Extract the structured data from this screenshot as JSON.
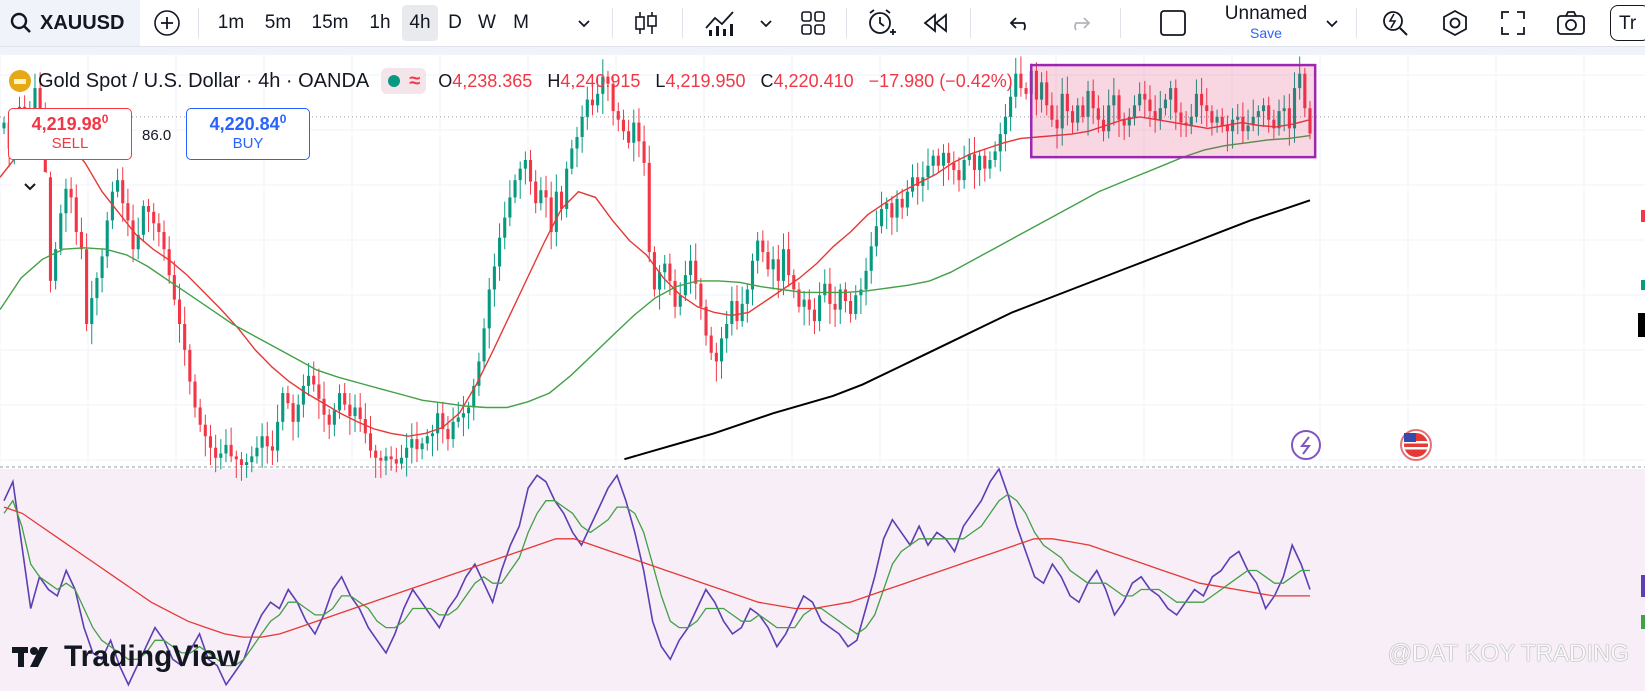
{
  "toolbar": {
    "symbol": "XAUUSD",
    "timeframes": [
      "1m",
      "5m",
      "15m",
      "1h",
      "4h",
      "D",
      "W",
      "M"
    ],
    "active_timeframe": "4h",
    "layout_name": "Unnamed",
    "save_label": "Save",
    "trade_cut": "Tr"
  },
  "legend": {
    "title": "Gold Spot / U.S. Dollar · 4h · OANDA",
    "o_label": "O",
    "o": "4,238.365",
    "h_label": "H",
    "h": "4,240.915",
    "l_label": "L",
    "l": "4,219.950",
    "c_label": "C",
    "c": "4,220.410",
    "change": "−17.980 (−0.42%)",
    "wave_glyph": "≈"
  },
  "trade": {
    "sell_price": "4,219.98",
    "sell_sup": "0",
    "sell_label": "SELL",
    "spread": "86.0",
    "buy_price": "4,220.84",
    "buy_sup": "0",
    "buy_label": "BUY"
  },
  "branding": {
    "logo_text": "TradingView",
    "watermark": "@DAT KOY TRADING"
  },
  "colors": {
    "up": "#089981",
    "down": "#f23645",
    "ema_short": "#e53935",
    "ema_mid": "#43a047",
    "ema_long": "#000000",
    "rsi": "#5b3fb3",
    "box": "#9c27b0"
  },
  "chart_data": [
    {
      "type": "candlestick",
      "title": "Gold Spot / U.S. Dollar · 4h · OANDA",
      "ylim": [
        3990,
        4275
      ],
      "close": [
        4228,
        4210,
        4232,
        4239,
        4218,
        4234,
        4252,
        4230,
        4190,
        4118,
        4140,
        4165,
        4182,
        4176,
        4152,
        4140,
        4088,
        4106,
        4120,
        4135,
        4160,
        4180,
        4188,
        4172,
        4160,
        4140,
        4150,
        4170,
        4166,
        4158,
        4152,
        4140,
        4122,
        4105,
        4088,
        4070,
        4048,
        4030,
        4018,
        4010,
        4002,
        3995,
        3998,
        4004,
        3996,
        3994,
        3990,
        3992,
        3996,
        4002,
        4010,
        4003,
        4000,
        4020,
        4040,
        4033,
        4020,
        4032,
        4045,
        4052,
        4046,
        4036,
        4025,
        4018,
        4028,
        4040,
        4032,
        4024,
        4030,
        4022,
        4012,
        4000,
        3995,
        3993,
        3996,
        3994,
        3991,
        3995,
        4002,
        4008,
        4001,
        4005,
        4010,
        4012,
        4026,
        4015,
        4008,
        4020,
        4023,
        4026,
        4030,
        4045,
        4062,
        4085,
        4112,
        4128,
        4148,
        4162,
        4176,
        4188,
        4196,
        4202,
        4187,
        4172,
        4181,
        4176,
        4152,
        4180,
        4168,
        4196,
        4210,
        4218,
        4232,
        4244,
        4240,
        4248,
        4260,
        4255,
        4236,
        4230,
        4222,
        4214,
        4228,
        4215,
        4200,
        4138,
        4112,
        4124,
        4130,
        4118,
        4100,
        4108,
        4122,
        4132,
        4116,
        4100,
        4080,
        4068,
        4062,
        4078,
        4088,
        4104,
        4090,
        4102,
        4112,
        4132,
        4146,
        4138,
        4126,
        4133,
        4118,
        4140,
        4122,
        4112,
        4100,
        4105,
        4098,
        4090,
        4108,
        4116,
        4102,
        4098,
        4112,
        4104,
        4095,
        4108,
        4112,
        4125,
        4142,
        4156,
        4168,
        4172,
        4162,
        4175,
        4169,
        4180,
        4190,
        4184,
        4190,
        4198,
        4205,
        4198,
        4207,
        4200,
        4195,
        4188,
        4202,
        4206,
        4195,
        4205,
        4196,
        4202,
        4208,
        4220,
        4232,
        4246,
        4262,
        4252,
        4248,
        4264,
        4244,
        4256,
        4240,
        4230,
        4224,
        4248,
        4236,
        4228,
        4240,
        4232,
        4250,
        4238,
        4230,
        4222,
        4240,
        4247,
        4230,
        4226,
        4232,
        4240,
        4248,
        4244,
        4236,
        4230,
        4238,
        4244,
        4252,
        4235,
        4228,
        4226,
        4232,
        4248,
        4240,
        4236,
        4228,
        4232,
        4226,
        4222,
        4230,
        4232,
        4222,
        4226,
        4232,
        4236,
        4240,
        4230,
        4224,
        4236,
        4238,
        4224,
        4252,
        4262,
        4238,
        4220.41
      ],
      "series": [
        {
          "name": "",
          "color": "#e53935",
          "x_first": 0,
          "values": [
            4190,
            4205,
            4212,
            4216,
            4214,
            4200,
            4180,
            4165,
            4150,
            4140,
            4132,
            4122,
            4110,
            4098,
            4085,
            4070,
            4058,
            4048,
            4040,
            4033,
            4026,
            4020,
            4015,
            4012,
            4010,
            4012,
            4016,
            4026,
            4046,
            4070,
            4095,
            4120,
            4145,
            4168,
            4180,
            4176,
            4160,
            4146,
            4136,
            4120,
            4108,
            4100,
            4096,
            4094,
            4096,
            4104,
            4112,
            4120,
            4130,
            4142,
            4152,
            4164,
            4172,
            4180,
            4186,
            4192,
            4200,
            4206,
            4210,
            4214,
            4217,
            4218,
            4219,
            4220,
            4222,
            4226,
            4230,
            4232,
            4230,
            4228,
            4226,
            4224,
            4226,
            4228,
            4226,
            4225,
            4227,
            4230
          ]
        },
        {
          "name": "",
          "color": "#43a047",
          "x_first": 0,
          "values": [
            4098,
            4120,
            4133,
            4140,
            4141,
            4140,
            4136,
            4128,
            4118,
            4108,
            4098,
            4088,
            4080,
            4072,
            4064,
            4056,
            4051,
            4047,
            4043,
            4039,
            4035,
            4033,
            4031,
            4030,
            4030,
            4034,
            4040,
            4052,
            4066,
            4080,
            4094,
            4106,
            4114,
            4118,
            4118,
            4117,
            4114,
            4112,
            4110,
            4110,
            4110,
            4111,
            4113,
            4115,
            4118,
            4124,
            4132,
            4140,
            4148,
            4156,
            4164,
            4172,
            4180,
            4186,
            4192,
            4198,
            4204,
            4209,
            4212,
            4214,
            4216,
            4217,
            4219
          ]
        },
        {
          "name": "",
          "color": "#000000",
          "x_first": 0,
          "values": [
            3994,
            4000,
            4006,
            4012,
            4019,
            4026,
            4032,
            4038,
            4046,
            4056,
            4066,
            4076,
            4086,
            4096,
            4104,
            4112,
            4120,
            4128,
            4136,
            4144,
            4152,
            4160,
            4167,
            4174
          ]
        }
      ],
      "annotations": [
        {
          "type": "rectangle",
          "color": "#9c27b0",
          "x_range": [
            199,
            254
          ],
          "y_range": [
            4204,
            4268
          ]
        },
        {
          "type": "icon",
          "name": "lightning-icon"
        },
        {
          "type": "icon",
          "name": "us-flag-icon"
        }
      ],
      "grid": true
    },
    {
      "type": "line",
      "title": "",
      "ylim": [
        20,
        90
      ],
      "series": [
        {
          "name": "",
          "color": "#5b3fb3",
          "values": [
            80,
            86,
            66,
            46,
            56,
            52,
            50,
            58,
            52,
            40,
            32,
            30,
            36,
            28,
            22,
            28,
            34,
            40,
            36,
            30,
            28,
            33,
            38,
            30,
            28,
            22,
            26,
            30,
            38,
            44,
            48,
            46,
            52,
            48,
            42,
            38,
            44,
            52,
            56,
            50,
            46,
            40,
            36,
            32,
            38,
            46,
            52,
            48,
            44,
            40,
            46,
            50,
            56,
            60,
            54,
            48,
            58,
            66,
            72,
            84,
            88,
            86,
            80,
            76,
            70,
            66,
            72,
            78,
            84,
            88,
            80,
            70,
            58,
            42,
            34,
            30,
            36,
            40,
            46,
            52,
            48,
            42,
            38,
            40,
            46,
            44,
            40,
            34,
            38,
            44,
            50,
            48,
            42,
            40,
            38,
            34,
            36,
            46,
            56,
            68,
            74,
            70,
            66,
            72,
            66,
            70,
            68,
            64,
            72,
            76,
            80,
            86,
            90,
            82,
            72,
            64,
            56,
            54,
            60,
            56,
            50,
            48,
            54,
            58,
            52,
            44,
            48,
            54,
            56,
            52,
            50,
            46,
            44,
            48,
            52,
            50,
            56,
            58,
            62,
            64,
            58,
            54,
            46,
            50,
            56,
            66,
            60,
            52
          ]
        },
        {
          "name": "",
          "color": "#43a047",
          "values": [
            76,
            80,
            72,
            60,
            56,
            54,
            52,
            54,
            52,
            46,
            40,
            36,
            34,
            32,
            30,
            30,
            32,
            36,
            36,
            34,
            32,
            32,
            34,
            32,
            30,
            28,
            28,
            30,
            34,
            38,
            42,
            44,
            48,
            48,
            46,
            44,
            44,
            46,
            50,
            50,
            48,
            46,
            42,
            40,
            40,
            42,
            46,
            46,
            46,
            44,
            44,
            46,
            50,
            54,
            56,
            54,
            54,
            58,
            62,
            70,
            76,
            80,
            80,
            78,
            76,
            72,
            70,
            72,
            74,
            78,
            78,
            76,
            70,
            60,
            50,
            42,
            40,
            40,
            42,
            46,
            46,
            46,
            44,
            42,
            42,
            44,
            42,
            40,
            40,
            40,
            44,
            46,
            46,
            44,
            42,
            40,
            38,
            40,
            44,
            52,
            60,
            64,
            66,
            68,
            68,
            68,
            68,
            68,
            68,
            70,
            72,
            76,
            80,
            82,
            80,
            76,
            70,
            66,
            64,
            62,
            58,
            56,
            54,
            54,
            54,
            52,
            50,
            50,
            52,
            52,
            52,
            50,
            48,
            48,
            48,
            48,
            50,
            52,
            54,
            56,
            58,
            58,
            56,
            54,
            54,
            56,
            58,
            58
          ]
        },
        {
          "name": "",
          "color": "#e53935",
          "values": [
            78,
            76,
            72,
            68,
            64,
            60,
            56,
            52,
            48,
            45,
            42,
            40,
            38,
            37,
            37,
            38,
            40,
            42,
            44,
            46,
            48,
            50,
            52,
            54,
            56,
            58,
            60,
            62,
            64,
            66,
            68,
            68,
            66,
            64,
            62,
            60,
            58,
            56,
            54,
            52,
            50,
            48,
            47,
            46,
            46,
            47,
            48,
            50,
            52,
            54,
            56,
            58,
            60,
            62,
            64,
            66,
            68,
            68,
            67,
            66,
            64,
            62,
            60,
            58,
            56,
            54,
            53,
            52,
            51,
            50,
            50,
            50
          ]
        }
      ],
      "grid": false
    }
  ]
}
